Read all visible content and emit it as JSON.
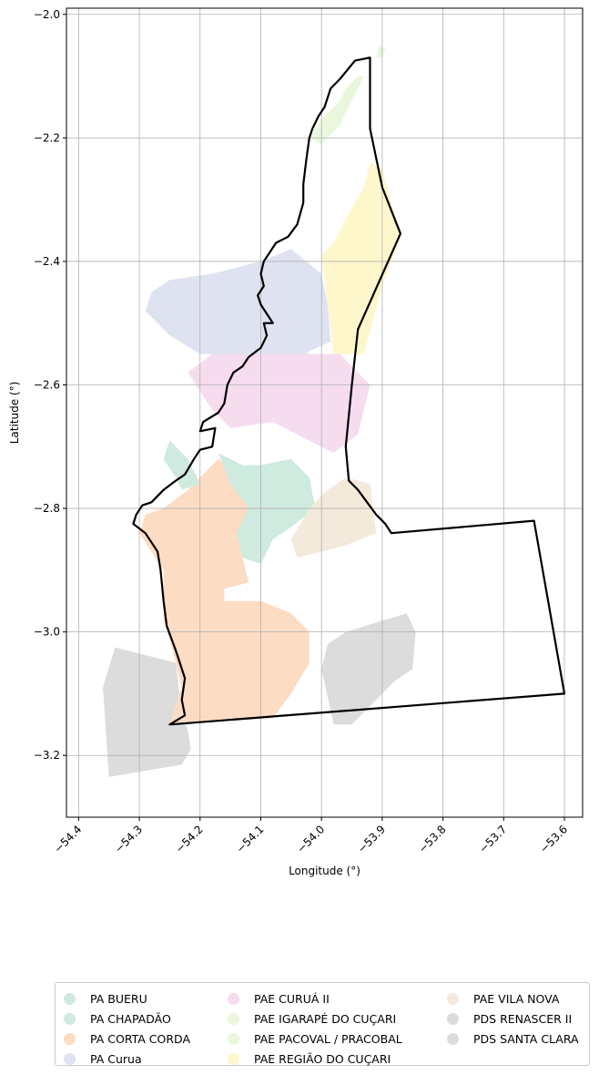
{
  "chart_data": {
    "type": "map",
    "xlabel": "Longitude (°)",
    "ylabel": "Latitude (°)",
    "xlim": [
      -54.42,
      -53.57
    ],
    "ylim": [
      -3.3,
      -1.99
    ],
    "xticks": [
      -54.4,
      -54.3,
      -54.2,
      -54.1,
      -54.0,
      -53.9,
      -53.8,
      -53.7,
      -53.6
    ],
    "yticks": [
      -2.0,
      -2.2,
      -2.4,
      -2.6,
      -2.8,
      -3.0,
      -3.2
    ],
    "xtick_labels": [
      "−54.4",
      "−54.3",
      "−54.2",
      "−54.1",
      "−54.0",
      "−53.9",
      "−53.8",
      "−53.7",
      "−53.6"
    ],
    "ytick_labels": [
      "−2.0",
      "−2.2",
      "−2.4",
      "−2.6",
      "−2.8",
      "−3.0",
      "−3.2"
    ],
    "grid": true,
    "legend_position": "bottom",
    "boundary_color": "#000000",
    "regions": [
      {
        "name": "PDS SANTA CLARA",
        "color": "#dcdcdc",
        "coords": [
          [
            -54.36,
            -3.09
          ],
          [
            -54.34,
            -3.025
          ],
          [
            -54.28,
            -3.04
          ],
          [
            -54.24,
            -3.05
          ],
          [
            -54.23,
            -3.13
          ],
          [
            -54.22,
            -3.16
          ],
          [
            -54.215,
            -3.19
          ],
          [
            -54.23,
            -3.215
          ],
          [
            -54.35,
            -3.235
          ]
        ]
      },
      {
        "name": "PDS RENASCER II",
        "color": "#dcdcdc",
        "coords": [
          [
            -53.99,
            -3.02
          ],
          [
            -53.96,
            -3.0
          ],
          [
            -53.86,
            -2.97
          ],
          [
            -53.845,
            -3.0
          ],
          [
            -53.85,
            -3.06
          ],
          [
            -53.88,
            -3.08
          ],
          [
            -53.9,
            -3.1
          ],
          [
            -53.93,
            -3.13
          ],
          [
            -53.95,
            -3.15
          ],
          [
            -53.98,
            -3.15
          ],
          [
            -54.0,
            -3.06
          ]
        ]
      },
      {
        "name": "PA CORTA CORDA",
        "color": "#fddcc4",
        "coords": [
          [
            -54.26,
            -2.8
          ],
          [
            -54.22,
            -2.77
          ],
          [
            -54.17,
            -2.72
          ],
          [
            -54.13,
            -2.75
          ],
          [
            -54.1,
            -2.77
          ],
          [
            -54.13,
            -2.82
          ],
          [
            -54.13,
            -2.88
          ],
          [
            -54.12,
            -2.92
          ],
          [
            -54.16,
            -2.93
          ],
          [
            -54.16,
            -2.95
          ],
          [
            -54.1,
            -2.95
          ],
          [
            -54.05,
            -2.97
          ],
          [
            -54.02,
            -3.0
          ],
          [
            -54.02,
            -3.05
          ],
          [
            -54.05,
            -3.1
          ],
          [
            -54.08,
            -3.14
          ],
          [
            -54.25,
            -3.15
          ],
          [
            -54.23,
            -3.09
          ],
          [
            -54.245,
            -3.03
          ],
          [
            -54.26,
            -2.98
          ],
          [
            -54.26,
            -2.9
          ],
          [
            -54.28,
            -2.87
          ],
          [
            -54.3,
            -2.84
          ],
          [
            -54.29,
            -2.81
          ]
        ]
      },
      {
        "name": "PA CHAPADÃO",
        "color": "#cfeadf",
        "coords": [
          [
            -54.17,
            -2.71
          ],
          [
            -54.13,
            -2.73
          ],
          [
            -54.1,
            -2.73
          ],
          [
            -54.05,
            -2.72
          ],
          [
            -54.02,
            -2.75
          ],
          [
            -54.01,
            -2.8
          ],
          [
            -54.05,
            -2.83
          ],
          [
            -54.08,
            -2.85
          ],
          [
            -54.1,
            -2.89
          ],
          [
            -54.13,
            -2.88
          ],
          [
            -54.14,
            -2.84
          ],
          [
            -54.12,
            -2.8
          ],
          [
            -54.15,
            -2.76
          ]
        ]
      },
      {
        "name": "PA BUERU",
        "color": "#cfeadf",
        "coords": [
          [
            -54.26,
            -2.72
          ],
          [
            -54.25,
            -2.69
          ],
          [
            -54.22,
            -2.72
          ],
          [
            -54.2,
            -2.76
          ],
          [
            -54.23,
            -2.77
          ],
          [
            -54.24,
            -2.75
          ]
        ]
      },
      {
        "name": "PAE VILA NOVA",
        "color": "#f4eadc",
        "coords": [
          [
            -54.02,
            -2.8
          ],
          [
            -53.99,
            -2.77
          ],
          [
            -53.96,
            -2.75
          ],
          [
            -53.92,
            -2.76
          ],
          [
            -53.91,
            -2.84
          ],
          [
            -53.96,
            -2.86
          ],
          [
            -54.0,
            -2.87
          ],
          [
            -54.04,
            -2.88
          ],
          [
            -54.05,
            -2.85
          ]
        ]
      },
      {
        "name": "PAE CURUÁ II",
        "color": "#f5dcee",
        "coords": [
          [
            -54.18,
            -2.55
          ],
          [
            -54.1,
            -2.52
          ],
          [
            -54.02,
            -2.55
          ],
          [
            -53.97,
            -2.55
          ],
          [
            -53.92,
            -2.6
          ],
          [
            -53.94,
            -2.68
          ],
          [
            -53.98,
            -2.71
          ],
          [
            -54.02,
            -2.69
          ],
          [
            -54.08,
            -2.66
          ],
          [
            -54.15,
            -2.67
          ],
          [
            -54.18,
            -2.64
          ],
          [
            -54.22,
            -2.58
          ]
        ]
      },
      {
        "name": "PA Curua",
        "color": "#dfe3f1",
        "coords": [
          [
            -54.28,
            -2.45
          ],
          [
            -54.25,
            -2.43
          ],
          [
            -54.18,
            -2.42
          ],
          [
            -54.1,
            -2.4
          ],
          [
            -54.05,
            -2.38
          ],
          [
            -54.0,
            -2.42
          ],
          [
            -53.99,
            -2.47
          ],
          [
            -53.985,
            -2.53
          ],
          [
            -54.03,
            -2.55
          ],
          [
            -54.08,
            -2.55
          ],
          [
            -54.2,
            -2.55
          ],
          [
            -54.25,
            -2.52
          ],
          [
            -54.29,
            -2.48
          ]
        ]
      },
      {
        "name": "PAE REGIÃO DO CUÇARI",
        "color": "#fff7cc",
        "coords": [
          [
            -54.0,
            -2.39
          ],
          [
            -53.98,
            -2.37
          ],
          [
            -53.96,
            -2.33
          ],
          [
            -53.93,
            -2.28
          ],
          [
            -53.92,
            -2.24
          ],
          [
            -53.9,
            -2.25
          ],
          [
            -53.87,
            -2.36
          ],
          [
            -53.9,
            -2.44
          ],
          [
            -53.93,
            -2.55
          ],
          [
            -53.98,
            -2.55
          ],
          [
            -53.99,
            -2.47
          ]
        ]
      },
      {
        "name": "PAE IGARAPÉ DO CUÇARI",
        "color": "#eaf7dc",
        "coords": [
          [
            -54.02,
            -2.2
          ],
          [
            -54.0,
            -2.17
          ],
          [
            -53.97,
            -2.14
          ],
          [
            -53.96,
            -2.12
          ],
          [
            -53.94,
            -2.1
          ],
          [
            -53.93,
            -2.1
          ],
          [
            -53.95,
            -2.14
          ],
          [
            -53.97,
            -2.18
          ],
          [
            -54.0,
            -2.21
          ]
        ]
      },
      {
        "name": "PAE PACOVAL / PRACOBAL",
        "color": "#eaf7dc",
        "coords": [
          [
            -53.91,
            -2.07
          ],
          [
            -53.905,
            -2.05
          ],
          [
            -53.895,
            -2.055
          ],
          [
            -53.9,
            -2.07
          ]
        ]
      }
    ],
    "boundary": [
      [
        -53.92,
        -2.07
      ],
      [
        -53.945,
        -2.075
      ],
      [
        -53.97,
        -2.105
      ],
      [
        -53.985,
        -2.12
      ],
      [
        -53.995,
        -2.15
      ],
      [
        -54.005,
        -2.165
      ],
      [
        -54.015,
        -2.185
      ],
      [
        -54.02,
        -2.2
      ],
      [
        -54.025,
        -2.235
      ],
      [
        -54.03,
        -2.275
      ],
      [
        -54.03,
        -2.305
      ],
      [
        -54.04,
        -2.34
      ],
      [
        -54.055,
        -2.36
      ],
      [
        -54.075,
        -2.37
      ],
      [
        -54.085,
        -2.385
      ],
      [
        -54.095,
        -2.4
      ],
      [
        -54.1,
        -2.42
      ],
      [
        -54.095,
        -2.44
      ],
      [
        -54.105,
        -2.455
      ],
      [
        -54.1,
        -2.47
      ],
      [
        -54.09,
        -2.485
      ],
      [
        -54.08,
        -2.5
      ],
      [
        -54.095,
        -2.5
      ],
      [
        -54.09,
        -2.52
      ],
      [
        -54.1,
        -2.54
      ],
      [
        -54.12,
        -2.555
      ],
      [
        -54.13,
        -2.57
      ],
      [
        -54.145,
        -2.58
      ],
      [
        -54.155,
        -2.6
      ],
      [
        -54.16,
        -2.63
      ],
      [
        -54.17,
        -2.645
      ],
      [
        -54.195,
        -2.66
      ],
      [
        -54.2,
        -2.675
      ],
      [
        -54.175,
        -2.67
      ],
      [
        -54.18,
        -2.7
      ],
      [
        -54.2,
        -2.705
      ],
      [
        -54.21,
        -2.72
      ],
      [
        -54.225,
        -2.745
      ],
      [
        -54.24,
        -2.755
      ],
      [
        -54.26,
        -2.77
      ],
      [
        -54.28,
        -2.79
      ],
      [
        -54.295,
        -2.795
      ],
      [
        -54.305,
        -2.81
      ],
      [
        -54.31,
        -2.825
      ],
      [
        -54.29,
        -2.84
      ],
      [
        -54.27,
        -2.87
      ],
      [
        -54.265,
        -2.9
      ],
      [
        -54.26,
        -2.95
      ],
      [
        -54.255,
        -2.99
      ],
      [
        -54.24,
        -3.03
      ],
      [
        -54.225,
        -3.075
      ],
      [
        -54.23,
        -3.11
      ],
      [
        -54.225,
        -3.135
      ],
      [
        -54.25,
        -3.15
      ],
      [
        -53.6,
        -3.1
      ],
      [
        -53.65,
        -2.82
      ],
      [
        -53.885,
        -2.84
      ],
      [
        -53.895,
        -2.825
      ],
      [
        -53.91,
        -2.81
      ],
      [
        -53.925,
        -2.79
      ],
      [
        -53.94,
        -2.77
      ],
      [
        -53.955,
        -2.755
      ],
      [
        -53.96,
        -2.7
      ],
      [
        -53.95,
        -2.6
      ],
      [
        -53.94,
        -2.51
      ],
      [
        -53.87,
        -2.355
      ],
      [
        -53.9,
        -2.28
      ],
      [
        -53.92,
        -2.185
      ],
      [
        -53.92,
        -2.07
      ]
    ],
    "legend": [
      {
        "label": "PA BUERU",
        "color": "#cfeadf"
      },
      {
        "label": "PA CHAPADÃO",
        "color": "#cfeadf"
      },
      {
        "label": "PA CORTA CORDA",
        "color": "#fddcc4"
      },
      {
        "label": "PA Curua",
        "color": "#dfe3f1"
      },
      {
        "label": "PAE CURUÁ II",
        "color": "#f5dcee"
      },
      {
        "label": "PAE IGARAPÉ DO CUÇARI",
        "color": "#eaf7dc"
      },
      {
        "label": "PAE PACOVAL / PRACOBAL",
        "color": "#eaf7dc"
      },
      {
        "label": "PAE REGIÃO DO CUÇARI",
        "color": "#fff7cc"
      },
      {
        "label": "PAE VILA NOVA",
        "color": "#f4eadc"
      },
      {
        "label": "PDS RENASCER II",
        "color": "#dcdcdc"
      },
      {
        "label": "PDS SANTA CLARA",
        "color": "#dcdcdc"
      }
    ]
  }
}
